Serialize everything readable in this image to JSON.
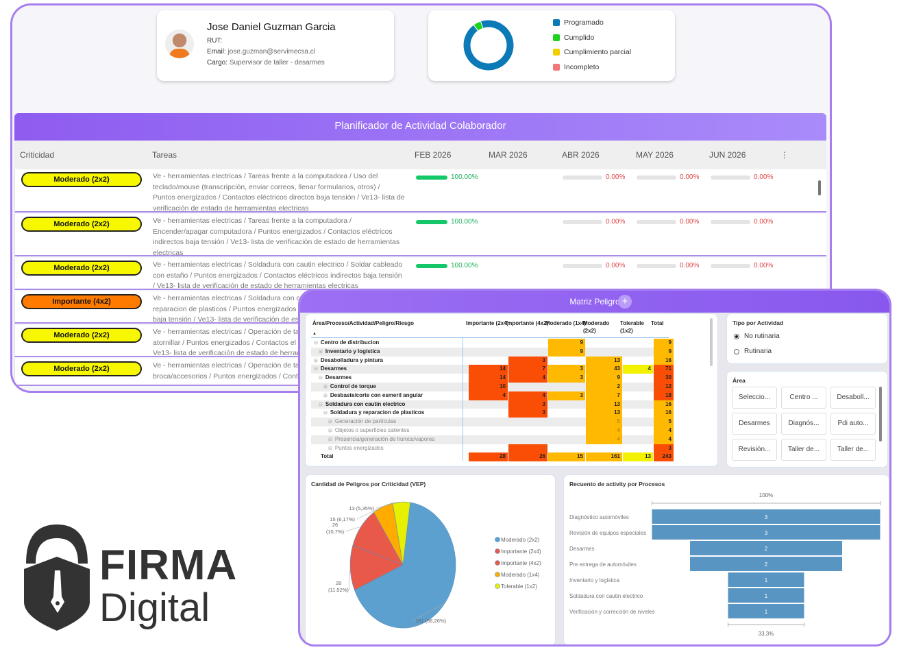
{
  "profile": {
    "name": "Jose Daniel Guzman Garcia",
    "rut_label": "RUT:",
    "email_label": "Email:",
    "email": "jose.guzman@servimecsa.cl",
    "cargo_label": "Cargo:",
    "cargo": "Supervisor de taller - desarmes"
  },
  "status_donut": {
    "legend": [
      {
        "label": "Programado",
        "color": "#0b7ab6",
        "share": 0.95
      },
      {
        "label": "Cumplido",
        "color": "#1fd21f",
        "share": 0.05
      },
      {
        "label": "Cumplimiento parcial",
        "color": "#f3cf00",
        "share": 0
      },
      {
        "label": "Incompleto",
        "color": "#f07878",
        "share": 0
      }
    ]
  },
  "planner": {
    "title": "Planificador de Actividad Colaborador",
    "columns": [
      "Criticidad",
      "Tareas",
      "FEB 2026",
      "MAR 2026",
      "ABR 2026",
      "MAY 2026",
      "JUN 2026"
    ],
    "menu_icon": "⋮",
    "rows": [
      {
        "criticidad": "Moderado (2x2)",
        "color": "#f7f700",
        "tarea": [
          "Ve - herramientas electricas / Tareas frente a la computadora / Uso del",
          "teclado/mouse (transcripción, enviar correos, llenar formularios, otros) /",
          "Puntos energizados / Contactos eléctricos directos baja tensión / Ve13- lista de",
          "verificación de estado de herramientas electricas"
        ],
        "feb": "100.00%",
        "abr": "0.00%",
        "may": "0.00%",
        "jun": "0.00%"
      },
      {
        "criticidad": "Moderado (2x2)",
        "color": "#f7f700",
        "tarea": [
          "Ve - herramientas electricas / Tareas frente a la computadora /",
          "Encender/apagar computadora / Puntos energizados / Contactos eléctricos",
          "indirectos baja tensión / Ve13- lista de verificación de estado de herramientas",
          "electricas"
        ],
        "feb": "100.00%",
        "abr": "0.00%",
        "may": "0.00%",
        "jun": "0.00%"
      },
      {
        "criticidad": "Moderado (2x2)",
        "color": "#f7f700",
        "tarea": [
          "Ve - herramientas electricas / Soldadura con cautin electrico / Soldar cableado",
          "con estaño / Puntos energizados / Contactos eléctricos indirectos baja tensión",
          "/ Ve13- lista de verificación de estado de herramientas electricas"
        ],
        "feb": "100.00%",
        "abr": "0.00%",
        "may": "0.00%",
        "jun": "0.00%"
      },
      {
        "criticidad": "Importante (4x2)",
        "color": "#ff7b00",
        "tarea": [
          "Ve - herramientas electricas / Soldadura con cau",
          "reparacion de plasticos / Puntos energizados /",
          "baja tensión / Ve13- lista de verificación de es"
        ]
      },
      {
        "criticidad": "Moderado (2x2)",
        "color": "#f7f700",
        "tarea": [
          "Ve - herramientas electricas / Operación de ta",
          "atornillar / Puntos energizados / Contactos el",
          "Ve13- lista de verificación de estado de herrar"
        ]
      },
      {
        "criticidad": "Moderado (2x2)",
        "color": "#f7f700",
        "tarea": [
          "Ve - herramientas electricas / Operación de ta",
          "broca/accesorios / Puntos energizados / Cont"
        ]
      }
    ]
  },
  "matriz": {
    "title": "Matriz Peligro",
    "plus_label": "+",
    "header": "Área/Proceso/Actividad/Peligro/Riesgo",
    "sort_icon": "▲",
    "columns": [
      "Importante (2x4)",
      "Importante (4x2)",
      "Moderado (1x4)",
      "Moderado (2x2)",
      "Tolerable (1x2)",
      "Total"
    ],
    "column_colors": [
      "#fa4e07",
      "#fa4e07",
      "#ffb900",
      "#ffb900",
      "#f2f200"
    ],
    "rows": [
      {
        "name": "Centro de distribucion",
        "level": 0,
        "toggle": "⊟",
        "cells": [
          null,
          null,
          9,
          null,
          null
        ],
        "total": 9,
        "total_color": "#ffb900"
      },
      {
        "name": "Inventario y logística",
        "level": 1,
        "toggle": "⊞",
        "cells": [
          null,
          null,
          9,
          null,
          null
        ],
        "total": 9,
        "total_color": "#ffb900"
      },
      {
        "name": "Desabolladura y pintura",
        "level": 0,
        "toggle": "⊞",
        "cells": [
          null,
          3,
          null,
          13,
          null
        ],
        "total": 16,
        "total_color": "#ffb900"
      },
      {
        "name": "Desarmes",
        "level": 0,
        "toggle": "⊟",
        "cells": [
          14,
          7,
          3,
          43,
          4
        ],
        "total": 71,
        "total_color": "#fa4e07"
      },
      {
        "name": "Desarmes",
        "level": 1,
        "toggle": "⊟",
        "cells": [
          14,
          4,
          3,
          9,
          null
        ],
        "total": 30,
        "total_color": "#fa4e07"
      },
      {
        "name": "Control de torque",
        "level": 2,
        "toggle": "⊞",
        "cells": [
          10,
          null,
          null,
          2,
          null
        ],
        "total": 12,
        "total_color": "#fa4e07"
      },
      {
        "name": "Desbaste/corte con esmeril angular",
        "level": 2,
        "toggle": "⊞",
        "cells": [
          4,
          4,
          3,
          7,
          null
        ],
        "total": 18,
        "total_color": "#fa4e07"
      },
      {
        "name": "Soldadura con cautin electrico",
        "level": 1,
        "toggle": "⊟",
        "cells": [
          null,
          3,
          null,
          13,
          null
        ],
        "total": 16,
        "total_color": "#ffb900"
      },
      {
        "name": "Soldadura y reparacion de plasticos",
        "level": 2,
        "toggle": "⊟",
        "cells": [
          null,
          3,
          null,
          13,
          null
        ],
        "total": 16,
        "total_color": "#ffb900"
      },
      {
        "name": "Generación de partículas",
        "level": 3,
        "toggle": "⊞",
        "light": true,
        "cells": [
          null,
          null,
          null,
          5,
          null
        ],
        "total": 5,
        "total_color": "#ffb900"
      },
      {
        "name": "Objetos o superficies calientes",
        "level": 3,
        "toggle": "⊞",
        "light": true,
        "cells": [
          null,
          null,
          null,
          4,
          null
        ],
        "total": 4,
        "total_color": "#ffb900"
      },
      {
        "name": "Presencia/generación de humos/vapores",
        "level": 3,
        "toggle": "⊞",
        "light": true,
        "cells": [
          null,
          null,
          null,
          4,
          null
        ],
        "total": 4,
        "total_color": "#ffb900"
      },
      {
        "name": "Puntos energizados",
        "level": 3,
        "toggle": "⊞",
        "light": true,
        "cells": [
          null,
          3,
          null,
          null,
          null
        ],
        "total": 3,
        "total_color": "#fa4e07"
      }
    ],
    "total_row": {
      "name": "Total",
      "cells": [
        28,
        26,
        15,
        161,
        13
      ],
      "total": 243,
      "total_color": "#fa4e07"
    }
  },
  "tipo": {
    "title": "Tipo por Actividad",
    "options": [
      {
        "label": "No rutinaria",
        "selected": true
      },
      {
        "label": "Rutinaria",
        "selected": false
      }
    ]
  },
  "area": {
    "title": "Área",
    "buttons": [
      "Seleccio...",
      "Centro ...",
      "Desaboll...",
      "Desarmes",
      "Diagnós...",
      "Pdi auto...",
      "Revisión...",
      "Taller de...",
      "Taller de..."
    ]
  },
  "chart_data": [
    {
      "type": "pie",
      "title": "Cantidad de Peligros por Criticidad (VEP)",
      "slices": [
        {
          "name": "Moderado (2x2)",
          "value": 161,
          "label": "161 (66,26%)",
          "color": "#5ca0cf"
        },
        {
          "name": "Importante (2x4)",
          "value": 28,
          "label": "28 (11,52%)",
          "color": "#e9594a"
        },
        {
          "name": "Importante (4x2)",
          "value": 26,
          "label": "26 (10,7%)",
          "color": "#e9594a"
        },
        {
          "name": "Moderado (1x4)",
          "value": 15,
          "label": "15 (6,17%)",
          "color": "#ffab00"
        },
        {
          "name": "Tolerable (1x2)",
          "value": 13,
          "label": "13 (5,35%)",
          "color": "#e6f000"
        }
      ],
      "legend": "right"
    },
    {
      "type": "funnel",
      "title": "Recuento de activity por Procesos",
      "top_label": "100%",
      "bottom_label": "33.3%",
      "color": "#5895c2",
      "categories": [
        "Diagnóstico automóviles",
        "Revisión de equipos especiales",
        "Desarmes",
        "Pre entrega de automóviles",
        "Inventario y logística",
        "Soldadura con cautin electrico",
        "Verificación y corrección de niveles"
      ],
      "values": [
        3,
        3,
        2,
        2,
        1,
        1,
        1
      ]
    }
  ],
  "logo": {
    "line1": "FIRMA",
    "line2": "Digital"
  }
}
